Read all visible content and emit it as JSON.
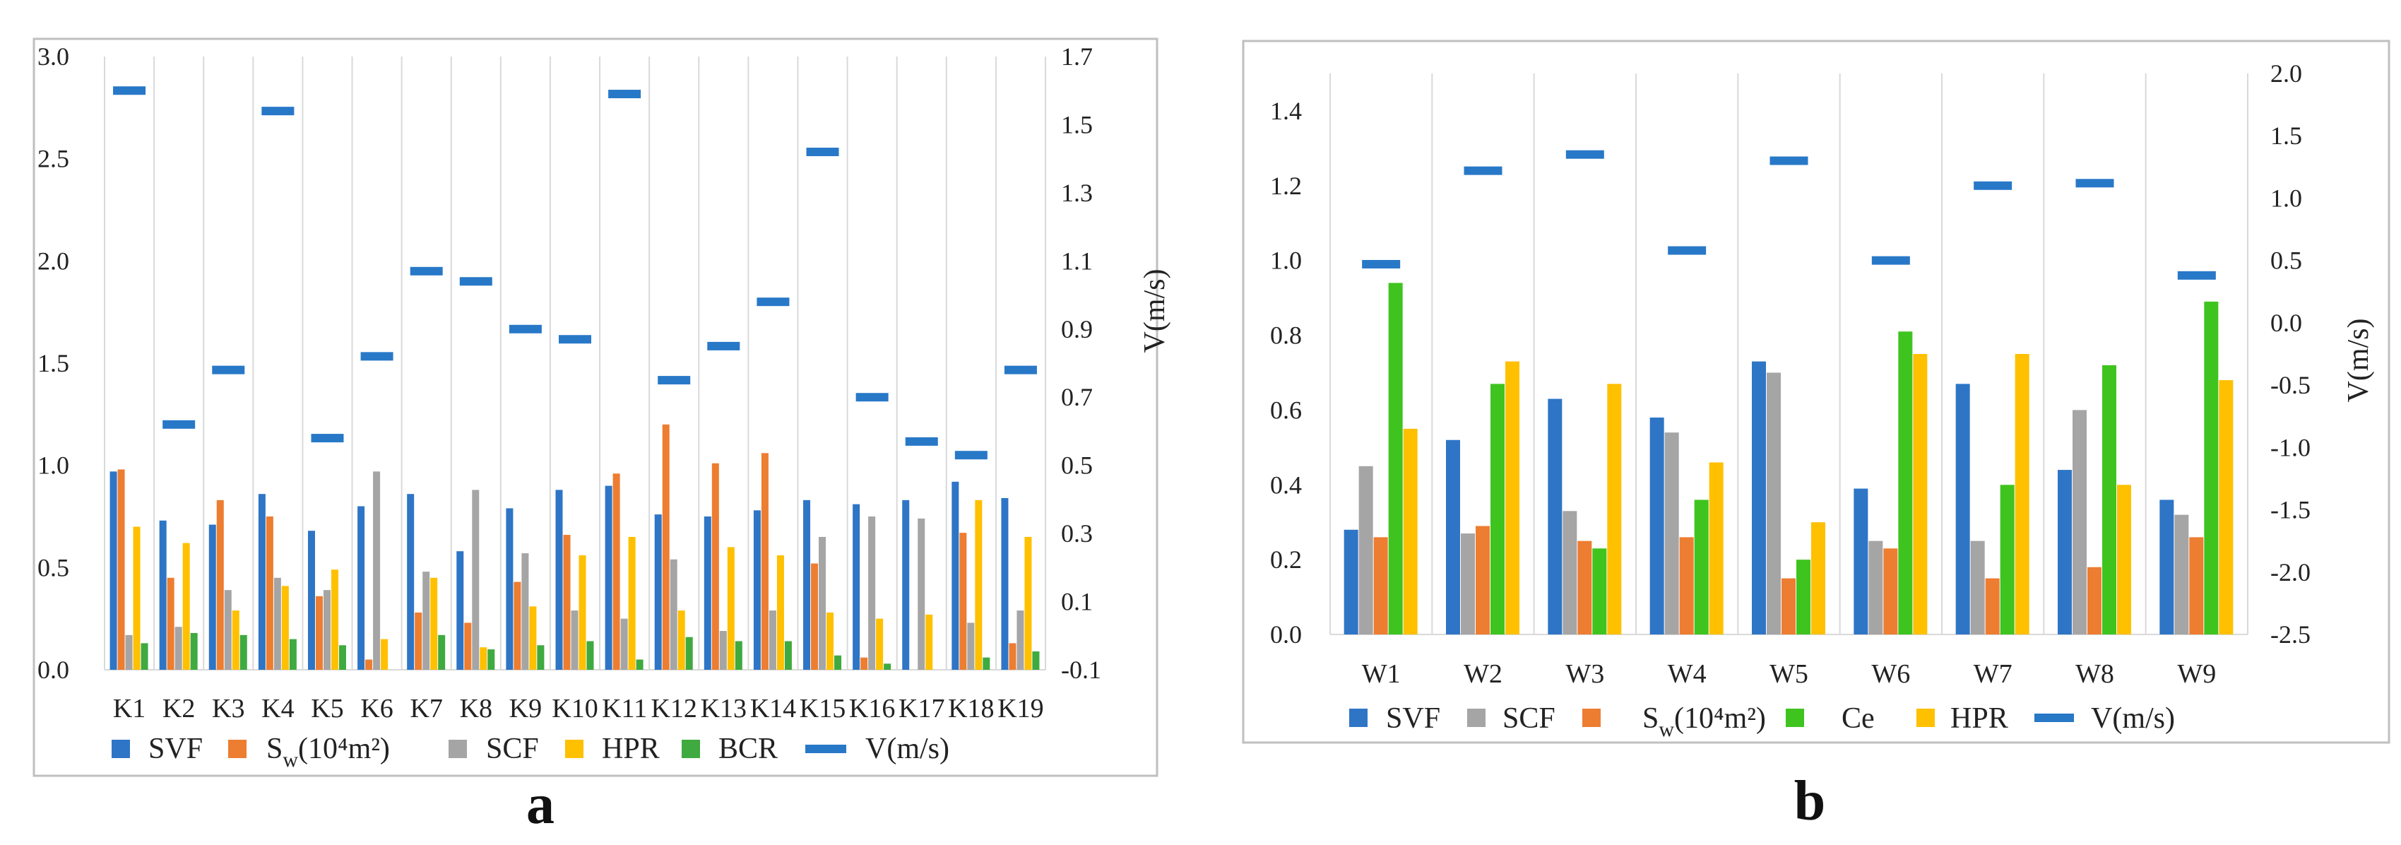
{
  "chart_data": [
    {
      "type": "bar",
      "panel_label": "a",
      "categories": [
        "K1",
        "K2",
        "K3",
        "K4",
        "K5",
        "K6",
        "K7",
        "K8",
        "K9",
        "K10",
        "K11",
        "K12",
        "K13",
        "K14",
        "K15",
        "K16",
        "K17",
        "K18",
        "K19"
      ],
      "ylim_left": [
        0,
        3.0
      ],
      "yticks_left": [
        "0.0",
        "0.5",
        "1.0",
        "1.5",
        "2.0",
        "2.5",
        "3.0"
      ],
      "ylim_right": [
        -0.1,
        1.7
      ],
      "yticks_right": [
        "-0.1",
        "0.1",
        "0.3",
        "0.5",
        "0.7",
        "0.9",
        "1.1",
        "1.3",
        "1.5",
        "1.7"
      ],
      "ylabel_right": "V(m/s)",
      "grid": true,
      "legend_position": "bottom",
      "series": [
        {
          "name": "SVF",
          "color": "#2e75c6",
          "values": [
            0.97,
            0.73,
            0.71,
            0.86,
            0.68,
            0.8,
            0.86,
            0.58,
            0.79,
            0.88,
            0.9,
            0.76,
            0.75,
            0.78,
            0.83,
            0.81,
            0.83,
            0.92,
            0.84
          ]
        },
        {
          "name": "Sw(10⁴m²)",
          "color": "#ed7d31",
          "values": [
            0.98,
            0.45,
            0.83,
            0.75,
            0.36,
            0.05,
            0.28,
            0.23,
            0.43,
            0.66,
            0.96,
            1.2,
            1.01,
            1.06,
            0.52,
            0.06,
            0.0,
            0.67,
            0.13
          ]
        },
        {
          "name": "SCF",
          "color": "#a5a5a5",
          "values": [
            0.17,
            0.21,
            0.39,
            0.45,
            0.39,
            0.97,
            0.48,
            0.88,
            0.57,
            0.29,
            0.25,
            0.54,
            0.19,
            0.29,
            0.65,
            0.75,
            0.74,
            0.23,
            0.29
          ]
        },
        {
          "name": "HPR",
          "color": "#ffc000",
          "values": [
            0.7,
            0.62,
            0.29,
            0.41,
            0.49,
            0.15,
            0.45,
            0.11,
            0.31,
            0.56,
            0.65,
            0.29,
            0.6,
            0.56,
            0.28,
            0.25,
            0.27,
            0.83,
            0.65
          ]
        },
        {
          "name": "BCR",
          "color": "#3faa3f",
          "values": [
            0.13,
            0.18,
            0.17,
            0.15,
            0.12,
            0.0,
            0.17,
            0.1,
            0.12,
            0.14,
            0.05,
            0.16,
            0.14,
            0.14,
            0.07,
            0.03,
            0.0,
            0.06,
            0.09
          ]
        }
      ],
      "line_series": {
        "name": "V(m/s)",
        "color": "#2878c8",
        "axis": "right",
        "values": [
          1.6,
          0.62,
          0.78,
          1.54,
          0.58,
          0.82,
          1.07,
          1.04,
          0.9,
          0.87,
          1.59,
          0.75,
          0.85,
          0.98,
          1.42,
          0.7,
          0.57,
          0.53,
          0.78
        ]
      },
      "legend_labels": {
        "SVF": "SVF",
        "Sw_base": "S",
        "Sw_sub": "w",
        "Sw_rest": "(10⁴m²)",
        "SCF": "SCF",
        "HPR": "HPR",
        "BCR": "BCR",
        "V": "V(m/s)"
      }
    },
    {
      "type": "bar",
      "panel_label": "b",
      "categories": [
        "W1",
        "W2",
        "W3",
        "W4",
        "W5",
        "W6",
        "W7",
        "W8",
        "W9"
      ],
      "ylim_left": [
        0,
        1.5
      ],
      "yticks_left": [
        "0.0",
        "0.2",
        "0.4",
        "0.6",
        "0.8",
        "1.0",
        "1.2",
        "1.4"
      ],
      "ylim_right": [
        -2.5,
        2.0
      ],
      "yticks_right": [
        "-2.5",
        "-2.0",
        "-1.5",
        "-1.0",
        "-0.5",
        "0.0",
        "0.5",
        "1.0",
        "1.5",
        "2.0"
      ],
      "ylabel_right": "V(m/s)",
      "grid": true,
      "legend_position": "bottom",
      "series": [
        {
          "name": "SVF",
          "color": "#2e75c6",
          "values": [
            0.28,
            0.52,
            0.63,
            0.58,
            0.73,
            0.39,
            0.67,
            0.44,
            0.36
          ]
        },
        {
          "name": "SCF",
          "color": "#a5a5a5",
          "values": [
            0.45,
            0.27,
            0.33,
            0.54,
            0.7,
            0.25,
            0.25,
            0.6,
            0.32
          ]
        },
        {
          "name": "Sw(10⁴m²)",
          "color": "#ed7d31",
          "values": [
            0.26,
            0.29,
            0.25,
            0.26,
            0.15,
            0.23,
            0.15,
            0.18,
            0.26
          ]
        },
        {
          "name": "Ce",
          "color": "#3fc41f",
          "values": [
            0.94,
            0.67,
            0.23,
            0.36,
            0.2,
            0.81,
            0.4,
            0.72,
            0.89
          ]
        },
        {
          "name": "HPR",
          "color": "#ffc000",
          "values": [
            0.55,
            0.73,
            0.67,
            0.46,
            0.3,
            0.75,
            0.75,
            0.4,
            0.68
          ]
        }
      ],
      "line_series": {
        "name": "V(m/s)",
        "color": "#2878c8",
        "axis": "right",
        "values": [
          0.47,
          1.22,
          1.35,
          0.58,
          1.3,
          0.5,
          1.1,
          1.12,
          0.38
        ]
      },
      "legend_labels": {
        "SVF": "SVF",
        "SCF": "SCF",
        "Sw_base": "S",
        "Sw_sub": "w",
        "Sw_rest": "(10⁴m²)",
        "Ce": "Ce",
        "HPR": "HPR",
        "V": "V(m/s)"
      }
    }
  ]
}
